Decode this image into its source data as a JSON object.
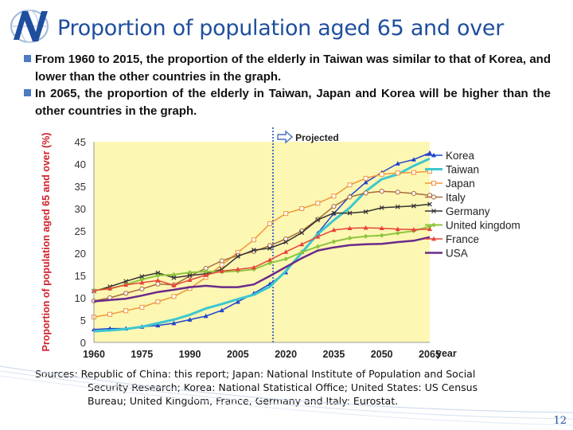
{
  "slide": {
    "title": "Proportion of population aged 65 and over",
    "bullets": [
      "From 1960 to 2015, the proportion of the elderly in Taiwan was similar to that of Korea, and lower than the other countries in the graph.",
      "In 2065, the proportion of the elderly in Taiwan, Japan and Korea will be higher than the other countries in the graph."
    ],
    "sources_line1": "Sources: Republic of China: this report; Japan: National Institute of Population and Social",
    "sources_line2": "Security Research; Korea: National Statistical Office; United States: US Census",
    "sources_line3": "Bureau; United Kingdom, France, Germany and Italy: Eurostat.",
    "page_number": "12",
    "accent_color": "#1f4e9e",
    "bullet_color": "#4a7bc4",
    "logo_icon": "globe-logo-icon"
  },
  "chart_data": {
    "type": "line",
    "ylabel": "Proportion of population aged 65 and over (%)",
    "xlabel": "year",
    "annotation": "Projected",
    "projection_start": 2016,
    "x": [
      1960,
      1965,
      1970,
      1975,
      1980,
      1985,
      1990,
      1995,
      2000,
      2005,
      2010,
      2015,
      2020,
      2025,
      2030,
      2035,
      2040,
      2045,
      2050,
      2055,
      2060,
      2065
    ],
    "xticks": [
      1960,
      1975,
      1990,
      2005,
      2020,
      2035,
      2050,
      2065
    ],
    "yticks": [
      0,
      5,
      10,
      15,
      20,
      25,
      30,
      35,
      40,
      45
    ],
    "ylim": [
      0,
      45
    ],
    "xlim": [
      1960,
      2065
    ],
    "grid": false,
    "legend_position": "right",
    "series": [
      {
        "name": "Korea",
        "color": "#2244cc",
        "marker": "triangle",
        "width": 1.5,
        "values": [
          2.9,
          3.1,
          3.1,
          3.5,
          3.8,
          4.3,
          5.1,
          5.9,
          7.2,
          9.1,
          11.0,
          13.1,
          15.7,
          20.3,
          24.5,
          28.9,
          32.8,
          35.9,
          38.1,
          40.1,
          41.0,
          42.5
        ]
      },
      {
        "name": "Taiwan",
        "color": "#3cc7cf",
        "marker": "none",
        "width": 3,
        "values": [
          2.5,
          2.7,
          3.0,
          3.5,
          4.3,
          5.1,
          6.2,
          7.6,
          8.6,
          9.7,
          10.7,
          12.5,
          16.0,
          20.1,
          24.3,
          27.4,
          30.2,
          33.9,
          36.6,
          37.7,
          39.6,
          41.2
        ]
      },
      {
        "name": "Japan",
        "color": "#f0963c",
        "marker": "square",
        "width": 1.5,
        "values": [
          5.7,
          6.3,
          7.1,
          7.9,
          9.1,
          10.3,
          12.1,
          14.6,
          17.4,
          20.2,
          23.0,
          26.6,
          28.9,
          30.0,
          31.2,
          32.8,
          35.3,
          36.8,
          37.7,
          38.0,
          38.1,
          38.4
        ]
      },
      {
        "name": "Italy",
        "color": "#a86a3a",
        "marker": "circle",
        "width": 1.5,
        "values": [
          9.3,
          10.0,
          11.0,
          12.0,
          13.1,
          12.9,
          14.9,
          16.6,
          18.3,
          19.5,
          20.4,
          21.7,
          23.2,
          25.0,
          27.6,
          30.5,
          32.6,
          33.5,
          33.9,
          33.7,
          33.4,
          33.0
        ]
      },
      {
        "name": "Germany",
        "color": "#333333",
        "marker": "x",
        "width": 1.5,
        "values": [
          11.5,
          12.5,
          13.7,
          14.8,
          15.6,
          14.5,
          15.0,
          15.4,
          16.4,
          19.3,
          20.7,
          21.1,
          22.5,
          24.6,
          27.5,
          29.0,
          29.0,
          29.3,
          30.2,
          30.4,
          30.6,
          31.0
        ]
      },
      {
        "name": "United kingdom",
        "color": "#8dc63f",
        "marker": "diamond",
        "width": 2,
        "values": [
          11.7,
          12.0,
          13.0,
          14.1,
          15.0,
          15.2,
          15.7,
          15.9,
          15.8,
          16.0,
          16.4,
          17.8,
          18.7,
          20.2,
          21.5,
          22.6,
          23.4,
          23.8,
          24.0,
          24.5,
          25.0,
          26.0
        ]
      },
      {
        "name": "France",
        "color": "#e8443a",
        "marker": "triangle",
        "width": 1.5,
        "values": [
          11.6,
          12.1,
          12.9,
          13.4,
          13.9,
          12.8,
          14.0,
          15.1,
          16.0,
          16.4,
          16.8,
          18.5,
          20.3,
          22.0,
          23.7,
          25.2,
          25.6,
          25.7,
          25.6,
          25.4,
          25.3,
          25.4
        ]
      },
      {
        "name": "USA",
        "color": "#6a2a8a",
        "marker": "none",
        "width": 2.5,
        "values": [
          9.2,
          9.5,
          9.8,
          10.5,
          11.3,
          11.8,
          12.4,
          12.7,
          12.4,
          12.4,
          13.0,
          14.9,
          16.9,
          18.9,
          20.6,
          21.3,
          21.8,
          22.0,
          22.1,
          22.5,
          22.8,
          23.6
        ]
      }
    ]
  }
}
